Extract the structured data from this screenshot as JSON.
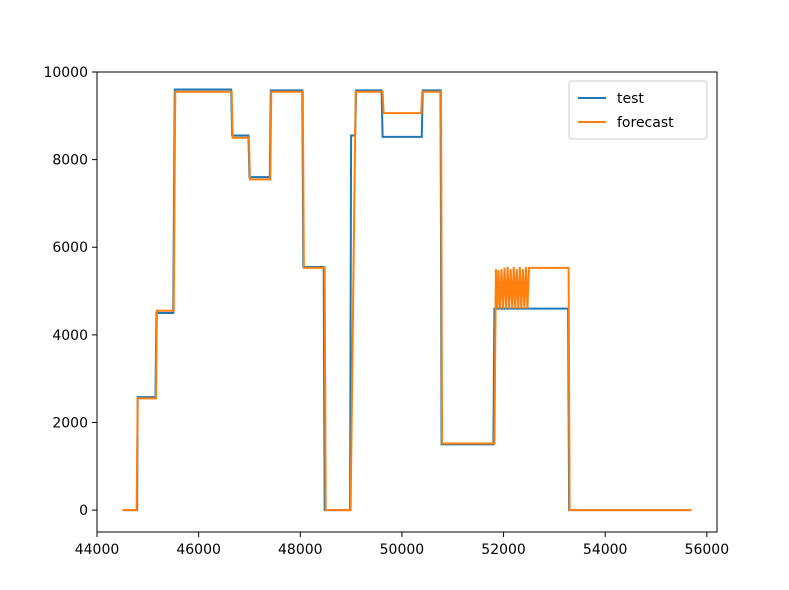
{
  "chart_data": {
    "type": "line",
    "title": "",
    "xlabel": "",
    "ylabel": "",
    "xlim": [
      44000,
      56200
    ],
    "ylim": [
      -500,
      10000
    ],
    "xticks": [
      44000,
      46000,
      48000,
      50000,
      52000,
      54000,
      56000
    ],
    "yticks": [
      0,
      2000,
      4000,
      6000,
      8000,
      10000
    ],
    "xtick_labels": [
      "44000",
      "46000",
      "48000",
      "50000",
      "52000",
      "54000",
      "56000"
    ],
    "ytick_labels": [
      "0",
      "2000",
      "4000",
      "6000",
      "8000",
      "10000"
    ],
    "grid": false,
    "legend_position": "top-right",
    "series": [
      {
        "name": "test",
        "color": "#1f77b4",
        "x": [
          44520,
          44790,
          44800,
          45150,
          45170,
          45500,
          45530,
          46640,
          46660,
          46980,
          47000,
          47400,
          47420,
          48040,
          48060,
          48460,
          48480,
          48980,
          49000,
          49080,
          49100,
          49600,
          49620,
          50390,
          50410,
          50760,
          50780,
          51800,
          51820,
          52000,
          52020,
          53270,
          53290,
          55680
        ],
        "y": [
          0,
          0,
          2580,
          2580,
          4500,
          4500,
          9600,
          9600,
          8550,
          8550,
          7600,
          7600,
          9580,
          9580,
          5550,
          5550,
          0,
          0,
          8550,
          8550,
          9580,
          9580,
          8520,
          8520,
          9580,
          9580,
          1500,
          1500,
          4600,
          4600,
          4600,
          4600,
          0,
          0
        ]
      },
      {
        "name": "forecast",
        "color": "#ff7f0e",
        "x": [
          44500,
          44780,
          44800,
          45160,
          45180,
          45510,
          45540,
          46650,
          46670,
          46990,
          47010,
          47410,
          47430,
          48050,
          48070,
          48480,
          48500,
          48990,
          49090,
          49620,
          49640,
          50380,
          50400,
          50770,
          50790,
          51820,
          51850,
          51880,
          51900,
          51930,
          51960,
          51990,
          52020,
          52050,
          52080,
          52110,
          52140,
          52170,
          52200,
          52230,
          52260,
          52290,
          52320,
          52350,
          52380,
          52410,
          52440,
          52470,
          52500,
          53280,
          53300,
          55700
        ],
        "y": [
          0,
          0,
          2550,
          2550,
          4550,
          4550,
          9550,
          9550,
          8500,
          8500,
          7550,
          7550,
          9550,
          9550,
          5530,
          5530,
          0,
          0,
          9550,
          9550,
          9060,
          9060,
          9550,
          9550,
          1520,
          1520,
          5500,
          4600,
          5480,
          4600,
          5500,
          4600,
          5530,
          4600,
          5550,
          4600,
          5500,
          4600,
          5550,
          4600,
          5500,
          4600,
          5550,
          4600,
          5500,
          4600,
          5550,
          4600,
          5530,
          5530,
          0,
          0
        ]
      }
    ]
  }
}
